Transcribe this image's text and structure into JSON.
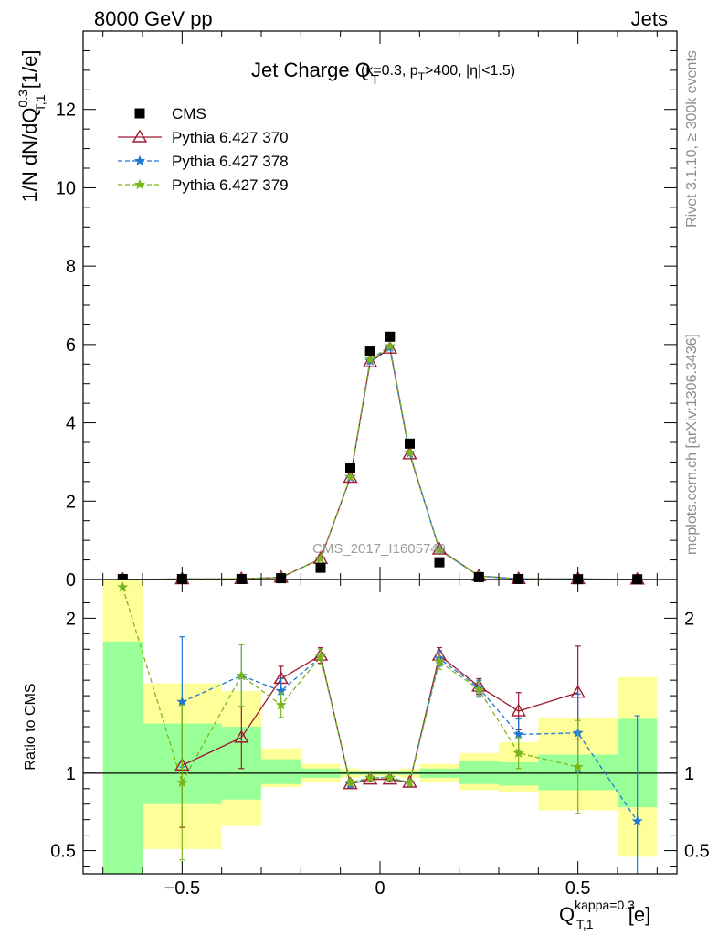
{
  "header": {
    "left": "8000 GeV pp",
    "right": "Jets"
  },
  "side_labels": {
    "top": "Rivet 3.1.10, ≥ 300k events",
    "bottom": "mcplots.cern.ch [arXiv:1306.3436]"
  },
  "watermark": "CMS_2017_I1605749",
  "colors": {
    "cms": "#000000",
    "p370": "#9b1b30",
    "p378": "#1e78d2",
    "p379": "#7cb51a",
    "band_inner": "#99ff99",
    "band_outer": "#ffff99"
  },
  "chart_data": [
    {
      "type": "scatter",
      "title": {
        "main": "Jet Charge Q",
        "main_sub": "T",
        "cond_a": "(κ=0.3, p",
        "cond_sub": "T",
        "cond_b": ">400, |η|<1.5)"
      },
      "ylabel": {
        "a": "1/N dN/dQ",
        "sup": "0.3",
        "sub": "T,1",
        "b": " [1/e]"
      },
      "xlim": [
        -0.75,
        0.75
      ],
      "ylim": [
        0,
        14
      ],
      "yticks": [
        0,
        2,
        4,
        6,
        8,
        10,
        12
      ],
      "x": [
        -0.65,
        -0.5,
        -0.35,
        -0.25,
        -0.15,
        -0.075,
        -0.025,
        0.025,
        0.075,
        0.15,
        0.25,
        0.35,
        0.5,
        0.65
      ],
      "series": [
        {
          "name": "CMS",
          "marker": "square",
          "values": [
            0.012,
            0.011,
            0.013,
            0.033,
            0.3,
            2.85,
            5.82,
            6.2,
            3.47,
            0.44,
            0.06,
            0.012,
            0.009,
            0.006
          ]
        },
        {
          "name": "Pythia 6.427 370",
          "marker": "triangle",
          "line": "solid",
          "values": [
            0.003,
            0.011,
            0.016,
            0.052,
            0.53,
            2.6,
            5.55,
            5.9,
            3.2,
            0.77,
            0.09,
            0.017,
            0.013,
            0.004
          ]
        },
        {
          "name": "Pythia 6.427 378",
          "marker": "star",
          "line": "dashed",
          "values": [
            0.003,
            0.016,
            0.021,
            0.05,
            0.53,
            2.6,
            5.58,
            5.93,
            3.22,
            0.76,
            0.09,
            0.015,
            0.011,
            0.004
          ]
        },
        {
          "name": "Pythia 6.427 379",
          "marker": "star",
          "line": "dashed",
          "values": [
            0.003,
            0.01,
            0.021,
            0.047,
            0.53,
            2.62,
            5.62,
            5.96,
            3.24,
            0.75,
            0.085,
            0.013,
            0.009,
            0.004
          ]
        }
      ]
    },
    {
      "type": "line",
      "ylabel": "Ratio to CMS",
      "xlabel": {
        "a": "Q",
        "sup": "kappa=0.3",
        "sub": "T,1",
        "b": " [e]"
      },
      "xlim": [
        -0.75,
        0.75
      ],
      "ylim": [
        0.35,
        2.25
      ],
      "yticks": [
        0.5,
        1,
        2
      ],
      "xticks": [
        -0.5,
        0,
        0.5
      ],
      "x": [
        -0.65,
        -0.5,
        -0.35,
        -0.25,
        -0.15,
        -0.075,
        -0.025,
        0.025,
        0.075,
        0.15,
        0.25,
        0.35,
        0.5,
        0.65
      ],
      "band_edges": [
        -0.7,
        -0.6,
        -0.4,
        -0.3,
        -0.2,
        -0.1,
        -0.05,
        0,
        0.05,
        0.1,
        0.2,
        0.3,
        0.4,
        0.6,
        0.7
      ],
      "band_inner": [
        [
          0.35,
          1.85
        ],
        [
          0.8,
          1.32
        ],
        [
          0.83,
          1.3
        ],
        [
          0.93,
          1.09
        ],
        [
          0.97,
          1.03
        ],
        [
          0.99,
          1.01
        ],
        [
          0.99,
          1.01
        ],
        [
          0.99,
          1.01
        ],
        [
          0.99,
          1.01
        ],
        [
          0.97,
          1.03
        ],
        [
          0.93,
          1.08
        ],
        [
          0.92,
          1.07
        ],
        [
          0.89,
          1.12
        ],
        [
          0.78,
          1.35
        ]
      ],
      "band_outer": [
        [
          0.35,
          2.25
        ],
        [
          0.51,
          1.58
        ],
        [
          0.66,
          1.53
        ],
        [
          0.91,
          1.16
        ],
        [
          0.94,
          1.06
        ],
        [
          0.97,
          1.03
        ],
        [
          0.98,
          1.02
        ],
        [
          0.98,
          1.02
        ],
        [
          0.97,
          1.03
        ],
        [
          0.94,
          1.06
        ],
        [
          0.89,
          1.13
        ],
        [
          0.88,
          1.2
        ],
        [
          0.76,
          1.36
        ],
        [
          0.46,
          1.62
        ]
      ],
      "series": [
        {
          "name": "Pythia 6.427 370",
          "values": [
            null,
            1.05,
            1.23,
            1.61,
            1.76,
            0.93,
            0.96,
            0.96,
            0.94,
            1.76,
            1.56,
            1.4,
            1.52,
            null
          ],
          "err": [
            null,
            0.4,
            0.2,
            0.08,
            0.05,
            0.02,
            0.01,
            0.01,
            0.02,
            0.05,
            0.05,
            0.12,
            0.3,
            null
          ]
        },
        {
          "name": "Pythia 6.427 378",
          "values": [
            null,
            1.46,
            1.63,
            1.53,
            1.75,
            0.93,
            0.97,
            0.97,
            0.94,
            1.74,
            1.55,
            1.25,
            1.26,
            0.69
          ],
          "err": [
            null,
            0.42,
            0.2,
            0.08,
            0.05,
            0.02,
            0.01,
            0.01,
            0.02,
            0.05,
            0.05,
            0.1,
            0.25,
            0.68
          ]
        },
        {
          "name": "Pythia 6.427 379",
          "values": [
            2.2,
            0.94,
            1.63,
            1.44,
            1.75,
            0.94,
            0.97,
            0.97,
            0.94,
            1.72,
            1.54,
            1.13,
            1.04,
            null
          ],
          "err": [
            null,
            0.5,
            0.2,
            0.08,
            0.05,
            0.02,
            0.01,
            0.01,
            0.02,
            0.05,
            0.05,
            0.1,
            0.3,
            null
          ]
        }
      ]
    }
  ]
}
